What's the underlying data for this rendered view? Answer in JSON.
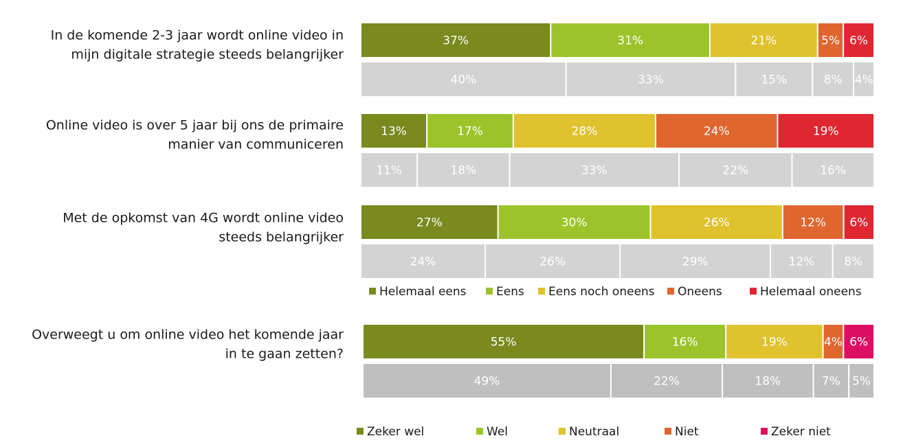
{
  "chart_data": [
    {
      "type": "bar",
      "orientation": "horizontal-stacked-100",
      "legend_position": "bottom",
      "legend": [
        {
          "label": "Helemaal eens",
          "color": "#7a8a1e"
        },
        {
          "label": "Eens",
          "color": "#9cc42a"
        },
        {
          "label": "Eens noch oneens",
          "color": "#dfc22d"
        },
        {
          "label": "Oneens",
          "color": "#e0662f"
        },
        {
          "label": "Helemaal oneens",
          "color": "#df2732"
        }
      ],
      "comparison_color": "#d3d3d3",
      "categories": [
        "In de komende 2-3 jaar wordt online video in mijn digitale strategie steeds belangrijker",
        "Online video is over 5 jaar bij ons de primaire manier van communiceren",
        "Met de opkomst van 4G wordt online video steeds belangrijker"
      ],
      "category_lines": [
        [
          "In de komende 2-3 jaar wordt online video in",
          "mijn digitale strategie steeds belangrijker"
        ],
        [
          "Online video is over 5 jaar bij ons de primaire",
          "manier van communiceren"
        ],
        [
          "Met de opkomst van 4G wordt online video",
          "steeds belangrijker"
        ]
      ],
      "series": [
        {
          "values": [
            [
              37,
              31,
              21,
              5,
              6
            ],
            [
              13,
              17,
              28,
              24,
              19
            ],
            [
              27,
              30,
              26,
              12,
              6
            ]
          ]
        },
        {
          "values": [
            [
              40,
              33,
              15,
              8,
              4
            ],
            [
              11,
              18,
              33,
              22,
              16
            ],
            [
              24,
              26,
              29,
              12,
              8
            ]
          ]
        }
      ],
      "value_suffix": "%"
    },
    {
      "type": "bar",
      "orientation": "horizontal-stacked-100",
      "legend_position": "bottom",
      "legend": [
        {
          "label": "Zeker wel",
          "color": "#7a8a1e"
        },
        {
          "label": "Wel",
          "color": "#9cc42a"
        },
        {
          "label": "Neutraal",
          "color": "#dfc22d"
        },
        {
          "label": "Niet",
          "color": "#e0662f"
        },
        {
          "label": "Zeker niet",
          "color": "#dd0f62"
        }
      ],
      "comparison_color": "#bfbfbf",
      "categories": [
        "Overweegt u om online video het komende jaar in te gaan zetten?"
      ],
      "category_lines": [
        [
          "Overweegt u om online video het komende jaar",
          "in te gaan zetten?"
        ]
      ],
      "series": [
        {
          "values": [
            [
              55,
              16,
              19,
              4,
              6
            ]
          ]
        },
        {
          "values": [
            [
              49,
              22,
              18,
              7,
              5
            ]
          ]
        }
      ],
      "value_suffix": "%"
    }
  ]
}
